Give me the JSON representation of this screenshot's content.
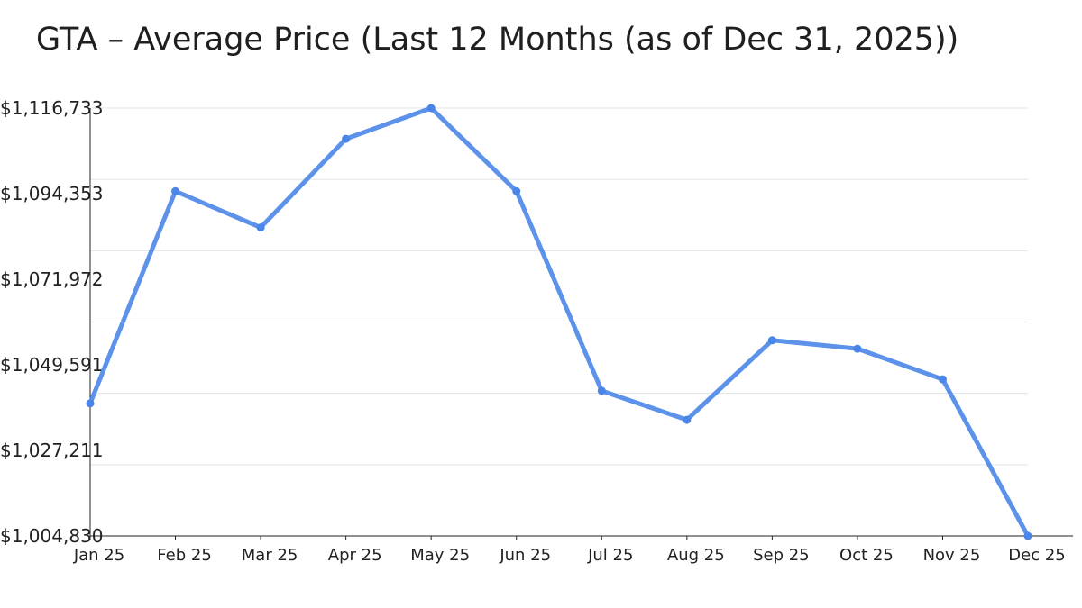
{
  "chart_data": {
    "type": "line",
    "title": "GTA – Average Price (Last 12 Months (as of Dec 31, 2025))",
    "xlabel": "",
    "ylabel": "",
    "categories": [
      "Jan 25",
      "Feb 25",
      "Mar 25",
      "Apr 25",
      "May 25",
      "Jun 25",
      "Jul 25",
      "Aug 25",
      "Sep 25",
      "Oct 25",
      "Nov 25",
      "Dec 25"
    ],
    "values": [
      1039500,
      1095000,
      1085500,
      1108700,
      1116733,
      1095000,
      1042800,
      1035200,
      1056000,
      1053800,
      1045800,
      1004830
    ],
    "ylim": [
      1004830,
      1116733
    ],
    "yticks": [
      "$1,004,830",
      "$1,027,211",
      "$1,049,591",
      "$1,071,972",
      "$1,094,353",
      "$1,116,733"
    ],
    "grid": true,
    "gridlines": 7,
    "line_color": "#4a86e8",
    "legend": "none"
  }
}
